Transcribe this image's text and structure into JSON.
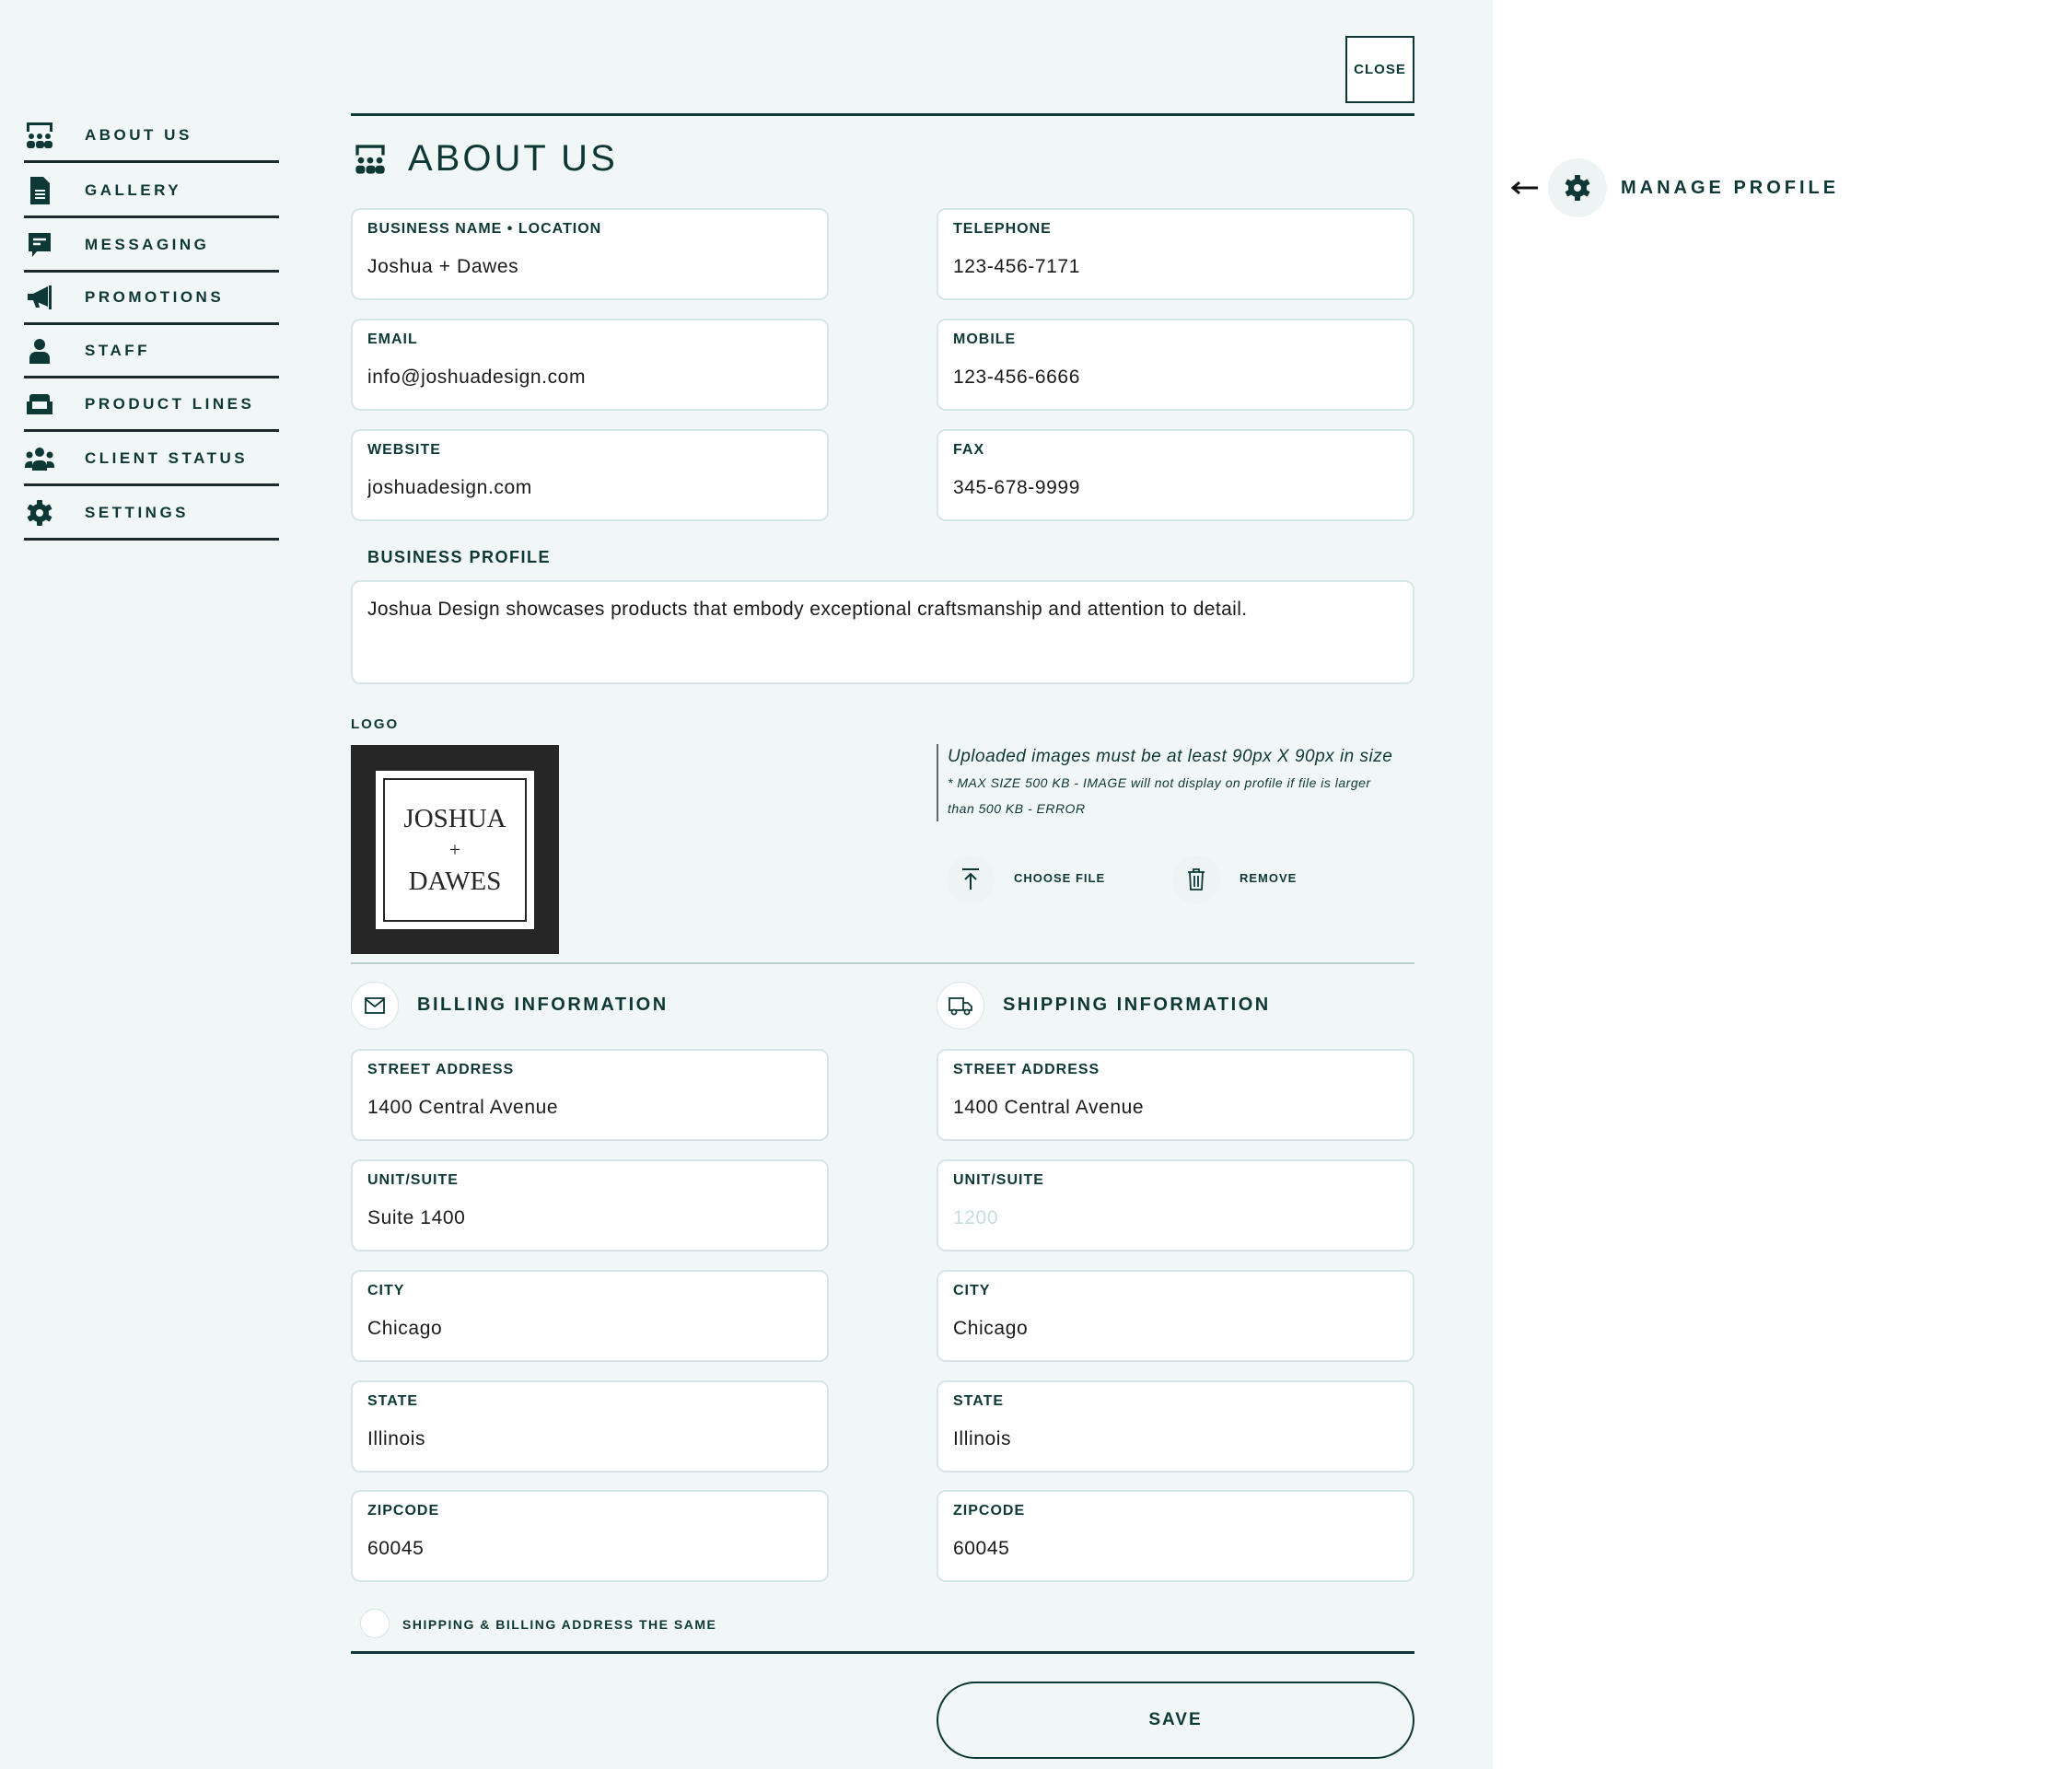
{
  "close_label": "CLOSE",
  "sidebar": {
    "items": [
      {
        "label": "ABOUT US",
        "icon": "presentation-icon"
      },
      {
        "label": "GALLERY",
        "icon": "document-icon"
      },
      {
        "label": "MESSAGING",
        "icon": "message-icon"
      },
      {
        "label": "PROMOTIONS",
        "icon": "megaphone-icon"
      },
      {
        "label": "STAFF",
        "icon": "user-icon"
      },
      {
        "label": "PRODUCT LINES",
        "icon": "armchair-icon"
      },
      {
        "label": "CLIENT STATUS",
        "icon": "users-icon"
      },
      {
        "label": "SETTINGS",
        "icon": "gear-icon"
      }
    ]
  },
  "page_title": "ABOUT US",
  "contact": {
    "business_name": {
      "label": "BUSINESS NAME • LOCATION",
      "value": "Joshua + Dawes"
    },
    "telephone": {
      "label": "TELEPHONE",
      "value": "123-456-7171"
    },
    "email": {
      "label": "EMAIL",
      "value": "info@joshuadesign.com"
    },
    "mobile": {
      "label": "MOBILE",
      "value": "123-456-6666"
    },
    "website": {
      "label": "WEBSITE",
      "value": "joshuadesign.com"
    },
    "fax": {
      "label": "FAX",
      "value": "345-678-9999"
    }
  },
  "business_profile": {
    "label": "BUSINESS PROFILE",
    "value": "Joshua Design showcases products that embody exceptional craftsmanship and attention to detail."
  },
  "logo": {
    "label": "LOGO",
    "text_line1": "JOSHUA",
    "text_line2": "+",
    "text_line3": "DAWES",
    "note_main": "Uploaded images must be at least 90px X 90px in size",
    "note_small": "* MAX SIZE 500 KB - IMAGE will not display on profile if file is larger than 500 KB - ERROR",
    "choose_file": "CHOOSE FILE",
    "remove": "REMOVE"
  },
  "billing": {
    "title": "BILLING INFORMATION",
    "fields": [
      {
        "label": "STREET ADDRESS",
        "value": "1400 Central Avenue"
      },
      {
        "label": "UNIT/SUITE",
        "value": "Suite 1400"
      },
      {
        "label": "CITY",
        "value": "Chicago"
      },
      {
        "label": "STATE",
        "value": "Illinois"
      },
      {
        "label": "ZIPCODE",
        "value": "60045"
      }
    ]
  },
  "shipping": {
    "title": "SHIPPING INFORMATION",
    "fields": [
      {
        "label": "STREET ADDRESS",
        "value": "1400 Central Avenue"
      },
      {
        "label": "UNIT/SUITE",
        "value": "",
        "placeholder": "1200"
      },
      {
        "label": "CITY",
        "value": "Chicago"
      },
      {
        "label": "STATE",
        "value": "Illinois"
      },
      {
        "label": "ZIPCODE",
        "value": "60045"
      }
    ]
  },
  "same_address": {
    "label": "SHIPPING & BILLING ADDRESS THE SAME",
    "checked": false
  },
  "save_label": "SAVE",
  "manage_profile": "MANAGE PROFILE",
  "colors": {
    "primary": "#0d3836",
    "panel_bg": "#f1f6f6",
    "field_border": "#d5e6e6"
  }
}
